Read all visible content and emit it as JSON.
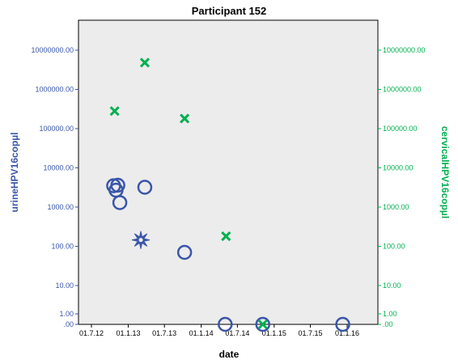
{
  "chart_data": {
    "type": "scatter",
    "title": "Participant 152",
    "xlabel": "date",
    "ylabel_left": "urineHPV16copµl",
    "ylabel_right": "cervicalHPV16copµl",
    "x_ticks": [
      "01.7.12",
      "01.1.13",
      "01.7.13",
      "01.1.14",
      "01.7.14",
      "01.1.15",
      "01.7.15",
      "01.1.16"
    ],
    "y_scale": "log-like (value + 1)",
    "y_ticks_left": [
      ".00",
      "1.00",
      "10.00",
      "100.00",
      "1000.00",
      "10000.00",
      "100000.00",
      "1000000.00",
      "10000000.00"
    ],
    "y_ticks_right": [
      ".00",
      "1.00",
      "10.00",
      "100.00",
      "1000.00",
      "10000.00",
      "100000.00",
      "1000000.00",
      "10000000.00"
    ],
    "series": [
      {
        "axis": "left",
        "marker": "circle",
        "color": "#3a56a8",
        "points": [
          {
            "x": "2012-10-20",
            "y": 3500
          },
          {
            "x": "2012-11-01",
            "y": 2700
          },
          {
            "x": "2012-11-10",
            "y": 3600
          },
          {
            "x": "2012-11-20",
            "y": 1300
          },
          {
            "x": "2013-03-25",
            "y": 3200
          },
          {
            "x": "2013-10-10",
            "y": 70
          },
          {
            "x": "2014-05-01",
            "y": 0
          },
          {
            "x": "2014-11-05",
            "y": 0
          },
          {
            "x": "2015-12-10",
            "y": 0
          }
        ]
      },
      {
        "axis": "right",
        "marker": "x",
        "color": "#00b050",
        "points": [
          {
            "x": "2012-10-25",
            "y": 280000
          },
          {
            "x": "2013-03-25",
            "y": 4800000
          },
          {
            "x": "2013-10-10",
            "y": 180000
          },
          {
            "x": "2014-05-05",
            "y": 180
          },
          {
            "x": "2014-11-05",
            "y": 0
          }
        ]
      },
      {
        "axis": "both",
        "marker": "star",
        "color": "#3a56a8",
        "points": [
          {
            "x": "2013-03-05",
            "y": 145
          }
        ]
      }
    ],
    "colors": {
      "left_axis": "#3a56a8",
      "right_axis": "#00b050",
      "plot_background": "#ececec"
    }
  }
}
